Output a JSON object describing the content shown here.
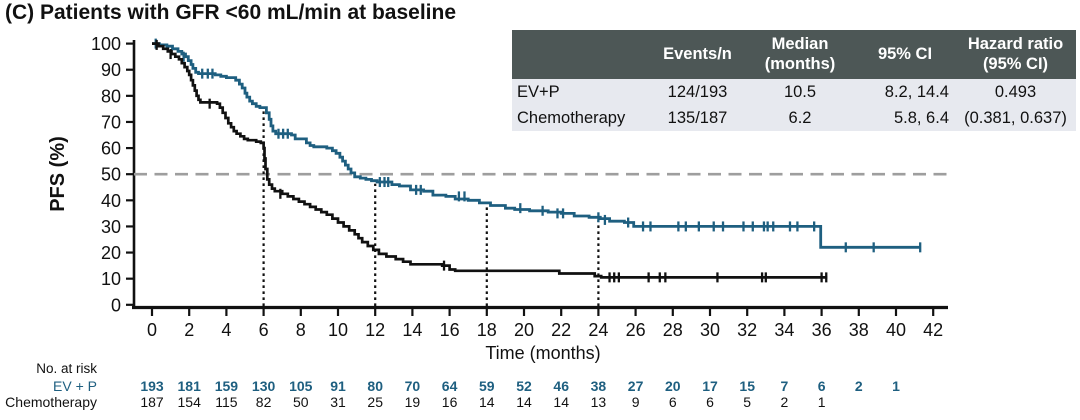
{
  "title": "(C) Patients with GFR <60 mL/min at baseline",
  "colors": {
    "evp_blue": "#1e5f80",
    "chemo_black": "#111111",
    "median_dash_gray": "#9e9e9e",
    "table_header_bg": "#4d5756",
    "table_row_bg": "#e7e9ef",
    "axis_black": "#111111"
  },
  "stats_table": {
    "headers": {
      "label": "",
      "events": "Events/n",
      "median_line1": "Median",
      "median_line2": "(months)",
      "ci": "95% CI",
      "hr_line1": "Hazard ratio",
      "hr_line2": "(95% CI)"
    },
    "rows": [
      {
        "label": "EV+P",
        "events": "124/193",
        "median": "10.5",
        "ci": "8.2, 14.4",
        "hr": "0.493"
      },
      {
        "label": "Chemotherapy",
        "events": "135/187",
        "median": "6.2",
        "ci": "5.8, 6.4",
        "hr": "(0.381, 0.637)"
      }
    ]
  },
  "chart_data": {
    "type": "line",
    "subtype": "kaplan-meier-step",
    "title": "(C) Patients with GFR <60 mL/min at baseline",
    "xlabel": "Time (months)",
    "ylabel": "PFS (%)",
    "xlim": [
      0,
      42
    ],
    "ylim": [
      0,
      100
    ],
    "xticks": [
      0,
      2,
      4,
      6,
      8,
      10,
      12,
      14,
      16,
      18,
      20,
      22,
      24,
      26,
      28,
      30,
      32,
      34,
      36,
      38,
      40,
      42
    ],
    "yticks": [
      0,
      10,
      20,
      30,
      40,
      50,
      60,
      70,
      80,
      90,
      100
    ],
    "grid": false,
    "legend_position": "none",
    "median_line_pct": 50,
    "dotted_vlines_months": [
      6,
      12,
      18,
      24
    ],
    "series": [
      {
        "name": "EV+P",
        "color": "#1e5f80",
        "steps": [
          [
            0,
            100
          ],
          [
            0.4,
            99.5
          ],
          [
            0.8,
            99
          ],
          [
            1.1,
            98
          ],
          [
            1.4,
            97
          ],
          [
            1.6,
            96
          ],
          [
            1.8,
            95
          ],
          [
            1.95,
            93.5
          ],
          [
            2.1,
            92
          ],
          [
            2.2,
            90.5
          ],
          [
            2.35,
            89
          ],
          [
            2.5,
            88.5
          ],
          [
            3.4,
            88
          ],
          [
            3.7,
            87.5
          ],
          [
            4.0,
            87
          ],
          [
            4.5,
            86
          ],
          [
            4.7,
            84.5
          ],
          [
            4.85,
            83
          ],
          [
            5.0,
            81
          ],
          [
            5.1,
            79.5
          ],
          [
            5.25,
            78
          ],
          [
            5.4,
            77
          ],
          [
            5.6,
            76
          ],
          [
            5.8,
            75.5
          ],
          [
            6.15,
            73.5
          ],
          [
            6.3,
            71
          ],
          [
            6.4,
            68.5
          ],
          [
            6.5,
            66.5
          ],
          [
            6.65,
            65.5
          ],
          [
            7.5,
            65
          ],
          [
            7.7,
            63.5
          ],
          [
            8.3,
            62
          ],
          [
            8.5,
            61
          ],
          [
            8.7,
            60.5
          ],
          [
            9.4,
            60
          ],
          [
            9.7,
            59
          ],
          [
            9.9,
            58
          ],
          [
            10.1,
            56.5
          ],
          [
            10.25,
            55
          ],
          [
            10.4,
            53.5
          ],
          [
            10.55,
            52
          ],
          [
            10.7,
            50.5
          ],
          [
            10.9,
            49
          ],
          [
            11.2,
            48.5
          ],
          [
            11.5,
            48
          ],
          [
            11.8,
            47.5
          ],
          [
            12.1,
            47
          ],
          [
            12.9,
            46
          ],
          [
            13.3,
            45.5
          ],
          [
            13.9,
            44
          ],
          [
            14.6,
            43.5
          ],
          [
            15.1,
            42
          ],
          [
            15.8,
            41.5
          ],
          [
            16.3,
            40.5
          ],
          [
            17.0,
            40
          ],
          [
            17.6,
            39
          ],
          [
            18.2,
            38
          ],
          [
            19.0,
            37
          ],
          [
            19.5,
            36.5
          ],
          [
            20.3,
            36
          ],
          [
            21.3,
            35.5
          ],
          [
            22.0,
            35
          ],
          [
            22.7,
            34
          ],
          [
            23.5,
            33.5
          ],
          [
            24.1,
            33
          ],
          [
            24.6,
            32
          ],
          [
            25.4,
            31.5
          ],
          [
            25.9,
            30
          ],
          [
            35.95,
            22
          ],
          [
            41.3,
            22
          ]
        ],
        "censors": [
          [
            0.2,
            100
          ],
          [
            1.7,
            95
          ],
          [
            2.7,
            88.5
          ],
          [
            3.0,
            88.5
          ],
          [
            3.25,
            88.5
          ],
          [
            6.8,
            65.5
          ],
          [
            7.05,
            65.5
          ],
          [
            7.3,
            65.5
          ],
          [
            12.25,
            47
          ],
          [
            12.5,
            47
          ],
          [
            12.7,
            47
          ],
          [
            14.2,
            44
          ],
          [
            14.45,
            44
          ],
          [
            16.5,
            41.5
          ],
          [
            16.8,
            41.5
          ],
          [
            19.8,
            37
          ],
          [
            21.0,
            36
          ],
          [
            21.8,
            35
          ],
          [
            22.1,
            35
          ],
          [
            24.0,
            33.5
          ],
          [
            24.35,
            32.5
          ],
          [
            25.6,
            31.5
          ],
          [
            26.4,
            30
          ],
          [
            26.8,
            30
          ],
          [
            28.3,
            30
          ],
          [
            28.7,
            30
          ],
          [
            29.4,
            30
          ],
          [
            30.2,
            30
          ],
          [
            30.7,
            30
          ],
          [
            31.8,
            30
          ],
          [
            32.3,
            30
          ],
          [
            32.9,
            30
          ],
          [
            33.1,
            30
          ],
          [
            33.4,
            30
          ],
          [
            34.3,
            30
          ],
          [
            34.7,
            30
          ],
          [
            35.6,
            30
          ],
          [
            37.3,
            22
          ],
          [
            38.8,
            22
          ],
          [
            41.3,
            22
          ]
        ]
      },
      {
        "name": "Chemotherapy",
        "color": "#111111",
        "steps": [
          [
            0,
            100
          ],
          [
            0.35,
            99
          ],
          [
            0.6,
            98
          ],
          [
            0.85,
            97
          ],
          [
            1.05,
            96
          ],
          [
            1.25,
            95
          ],
          [
            1.45,
            94
          ],
          [
            1.6,
            92.5
          ],
          [
            1.75,
            91
          ],
          [
            1.9,
            89.5
          ],
          [
            2.0,
            88
          ],
          [
            2.1,
            86
          ],
          [
            2.2,
            84
          ],
          [
            2.3,
            82
          ],
          [
            2.4,
            80
          ],
          [
            2.5,
            78.5
          ],
          [
            2.6,
            77.5
          ],
          [
            3.5,
            77
          ],
          [
            3.65,
            75.5
          ],
          [
            3.8,
            73.5
          ],
          [
            3.95,
            71.5
          ],
          [
            4.1,
            69.5
          ],
          [
            4.25,
            68
          ],
          [
            4.4,
            66.5
          ],
          [
            4.55,
            65.5
          ],
          [
            4.75,
            64.5
          ],
          [
            4.95,
            63.5
          ],
          [
            5.15,
            63
          ],
          [
            5.6,
            62.5
          ],
          [
            5.85,
            62
          ],
          [
            6.0,
            60
          ],
          [
            6.05,
            56
          ],
          [
            6.1,
            52
          ],
          [
            6.2,
            48
          ],
          [
            6.3,
            46
          ],
          [
            6.45,
            44.5
          ],
          [
            6.6,
            43.5
          ],
          [
            7.0,
            42.5
          ],
          [
            7.3,
            41.5
          ],
          [
            7.6,
            40.5
          ],
          [
            7.9,
            39.5
          ],
          [
            8.2,
            38.5
          ],
          [
            8.5,
            37.5
          ],
          [
            8.8,
            36.5
          ],
          [
            9.1,
            35.5
          ],
          [
            9.4,
            34.5
          ],
          [
            9.7,
            33
          ],
          [
            10.0,
            31.5
          ],
          [
            10.3,
            30
          ],
          [
            10.6,
            28.5
          ],
          [
            10.9,
            27
          ],
          [
            11.1,
            25.5
          ],
          [
            11.3,
            24
          ],
          [
            11.6,
            22.5
          ],
          [
            11.9,
            21
          ],
          [
            12.2,
            19.5
          ],
          [
            12.6,
            18.5
          ],
          [
            13.1,
            17.5
          ],
          [
            13.5,
            16.5
          ],
          [
            13.9,
            15.5
          ],
          [
            15.6,
            15
          ],
          [
            16.0,
            13.5
          ],
          [
            16.3,
            13
          ],
          [
            21.9,
            12
          ],
          [
            23.8,
            11
          ],
          [
            24.15,
            10.5
          ],
          [
            36.3,
            10.5
          ]
        ],
        "censors": [
          [
            0.25,
            99.5
          ],
          [
            1.0,
            96
          ],
          [
            3.1,
            77
          ],
          [
            6.9,
            42.5
          ],
          [
            15.7,
            15
          ],
          [
            24.6,
            10.5
          ],
          [
            24.85,
            10.5
          ],
          [
            25.1,
            10.5
          ],
          [
            26.7,
            10.5
          ],
          [
            27.3,
            10.5
          ],
          [
            27.6,
            10.5
          ],
          [
            30.4,
            10.5
          ],
          [
            32.8,
            10.5
          ],
          [
            33.0,
            10.5
          ],
          [
            36.0,
            10.5
          ],
          [
            36.25,
            10.5
          ]
        ]
      }
    ]
  },
  "at_risk": {
    "label": "No. at risk",
    "start_month": 0,
    "month_interval": 2,
    "rows": [
      {
        "name": "EV + P",
        "color": "#1e5f80",
        "bold": true,
        "values": [
          193,
          181,
          159,
          130,
          105,
          91,
          80,
          70,
          64,
          59,
          52,
          46,
          38,
          27,
          20,
          17,
          15,
          7,
          6,
          2,
          1
        ]
      },
      {
        "name": "Chemotherapy",
        "color": "#111111",
        "bold": false,
        "values": [
          187,
          154,
          115,
          82,
          50,
          31,
          25,
          19,
          16,
          14,
          14,
          14,
          13,
          9,
          6,
          6,
          5,
          2,
          1
        ]
      }
    ]
  }
}
